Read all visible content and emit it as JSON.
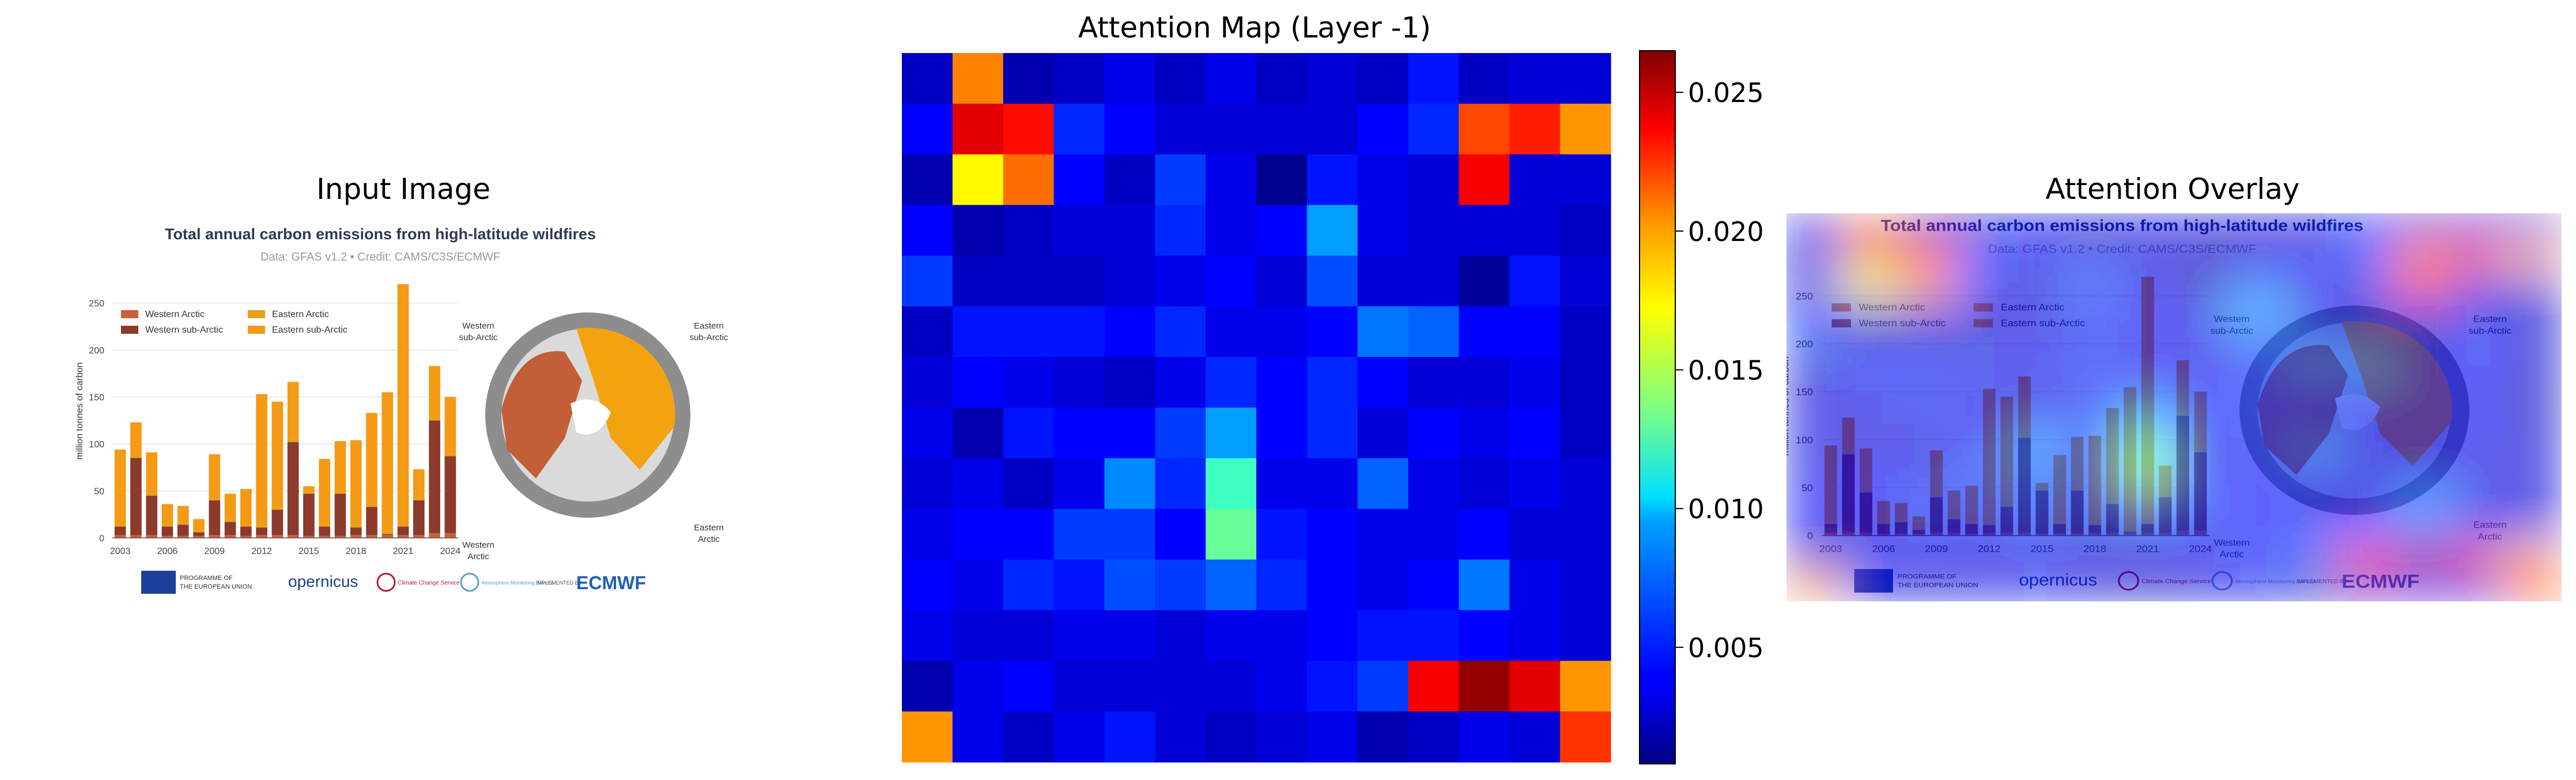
{
  "panels": {
    "input_title": "Input Image",
    "attention_title": "Attention Map (Layer -1)",
    "overlay_title": "Attention Overlay"
  },
  "colormap": "jet",
  "chart_data": [
    {
      "type": "bar",
      "panel": "input",
      "title": "Total annual carbon emissions from high-latitude wildfires",
      "subtitle": "Data: GFAS v1.2 • Credit: CAMS/C3S/ECMWF",
      "ylabel": "million tonnes of carbon",
      "xlabel": "",
      "ylim": [
        0,
        270
      ],
      "yticks": [
        0,
        50,
        100,
        150,
        200,
        250
      ],
      "xticks": [
        "2003",
        "2006",
        "2009",
        "2012",
        "2015",
        "2018",
        "2021",
        "2024"
      ],
      "categories": [
        "2003",
        "2004",
        "2005",
        "2006",
        "2007",
        "2008",
        "2009",
        "2010",
        "2011",
        "2012",
        "2013",
        "2014",
        "2015",
        "2016",
        "2017",
        "2018",
        "2019",
        "2020",
        "2021",
        "2022",
        "2023",
        "2024"
      ],
      "stacked": true,
      "series": [
        {
          "name": "Western Arctic",
          "color": "#c9603a",
          "values": [
            3,
            3,
            3,
            2,
            2,
            2,
            3,
            3,
            2,
            3,
            3,
            3,
            2,
            2,
            2,
            3,
            3,
            3,
            3,
            3,
            5,
            5
          ]
        },
        {
          "name": "Western sub-Arctic",
          "color": "#8b3a2b",
          "values": [
            9,
            82,
            42,
            10,
            12,
            4,
            37,
            14,
            10,
            8,
            27,
            99,
            45,
            10,
            45,
            8,
            30,
            1,
            9,
            37,
            120,
            82
          ]
        },
        {
          "name": "Eastern Arctic",
          "color": "#e8a01a",
          "values": [
            2,
            3,
            3,
            2,
            2,
            2,
            3,
            3,
            2,
            4,
            3,
            3,
            2,
            2,
            2,
            3,
            3,
            3,
            3,
            3,
            3,
            3
          ]
        },
        {
          "name": "Eastern sub-Arctic",
          "color": "#f49a15",
          "values": [
            80,
            35,
            43,
            22,
            18,
            12,
            46,
            27,
            38,
            138,
            112,
            61,
            6,
            70,
            54,
            90,
            97,
            148,
            255,
            30,
            55,
            60
          ]
        }
      ],
      "legend_position": "top-left",
      "inset_map": {
        "labels": [
          "Western sub-Arctic",
          "Eastern sub-Arctic",
          "Western Arctic",
          "Eastern Arctic"
        ]
      },
      "footer_logos": [
        "PROGRAMME OF THE EUROPEAN UNION",
        "opernicus",
        "Climate Change Service",
        "Atmosphere Monitoring Service",
        "ECMWF"
      ],
      "footer_small": "IMPLEMENTED BY"
    },
    {
      "type": "heatmap",
      "panel": "attention",
      "rows": 14,
      "cols": 14,
      "vmin": 0.0008,
      "vmax": 0.0265,
      "colorbar_ticks": [
        "0.005",
        "0.010",
        "0.015",
        "0.020",
        "0.025"
      ],
      "colorbar_tick_values": [
        0.005,
        0.01,
        0.015,
        0.02,
        0.025
      ],
      "values": [
        [
          0.0025,
          0.02,
          0.002,
          0.0025,
          0.0035,
          0.0025,
          0.0035,
          0.0025,
          0.003,
          0.0025,
          0.0045,
          0.0025,
          0.003,
          0.003
        ],
        [
          0.004,
          0.024,
          0.023,
          0.005,
          0.004,
          0.003,
          0.003,
          0.003,
          0.003,
          0.004,
          0.005,
          0.0215,
          0.0225,
          0.0195
        ],
        [
          0.002,
          0.017,
          0.0205,
          0.004,
          0.0025,
          0.0055,
          0.0035,
          0.0012,
          0.0045,
          0.0035,
          0.003,
          0.0235,
          0.003,
          0.003
        ],
        [
          0.004,
          0.002,
          0.0025,
          0.003,
          0.003,
          0.005,
          0.0035,
          0.004,
          0.008,
          0.0035,
          0.003,
          0.003,
          0.003,
          0.0025
        ],
        [
          0.0055,
          0.0025,
          0.0025,
          0.0025,
          0.003,
          0.0035,
          0.004,
          0.003,
          0.006,
          0.003,
          0.003,
          0.0015,
          0.0045,
          0.003
        ],
        [
          0.0025,
          0.0045,
          0.0045,
          0.0045,
          0.004,
          0.005,
          0.0035,
          0.0035,
          0.004,
          0.007,
          0.0065,
          0.004,
          0.004,
          0.0025
        ],
        [
          0.003,
          0.004,
          0.0035,
          0.003,
          0.0025,
          0.0035,
          0.005,
          0.004,
          0.005,
          0.004,
          0.003,
          0.003,
          0.0035,
          0.0025
        ],
        [
          0.0035,
          0.002,
          0.0045,
          0.004,
          0.004,
          0.0055,
          0.008,
          0.004,
          0.005,
          0.003,
          0.004,
          0.0035,
          0.004,
          0.0025
        ],
        [
          0.003,
          0.0035,
          0.0025,
          0.0035,
          0.0075,
          0.005,
          0.012,
          0.0035,
          0.0035,
          0.0065,
          0.0035,
          0.003,
          0.0035,
          0.003
        ],
        [
          0.0035,
          0.004,
          0.004,
          0.0055,
          0.0055,
          0.004,
          0.013,
          0.0045,
          0.004,
          0.0035,
          0.0035,
          0.004,
          0.003,
          0.003
        ],
        [
          0.004,
          0.0035,
          0.005,
          0.0045,
          0.006,
          0.0055,
          0.0065,
          0.005,
          0.004,
          0.0035,
          0.004,
          0.007,
          0.0035,
          0.003
        ],
        [
          0.0035,
          0.003,
          0.003,
          0.0035,
          0.0035,
          0.003,
          0.0035,
          0.0035,
          0.004,
          0.0045,
          0.0045,
          0.004,
          0.0035,
          0.003
        ],
        [
          0.002,
          0.0035,
          0.004,
          0.003,
          0.003,
          0.003,
          0.003,
          0.0035,
          0.0045,
          0.0055,
          0.0235,
          0.026,
          0.024,
          0.0195
        ],
        [
          0.0195,
          0.0035,
          0.0025,
          0.0035,
          0.0045,
          0.003,
          0.0025,
          0.003,
          0.0035,
          0.002,
          0.0025,
          0.0035,
          0.003,
          0.022
        ]
      ]
    }
  ]
}
